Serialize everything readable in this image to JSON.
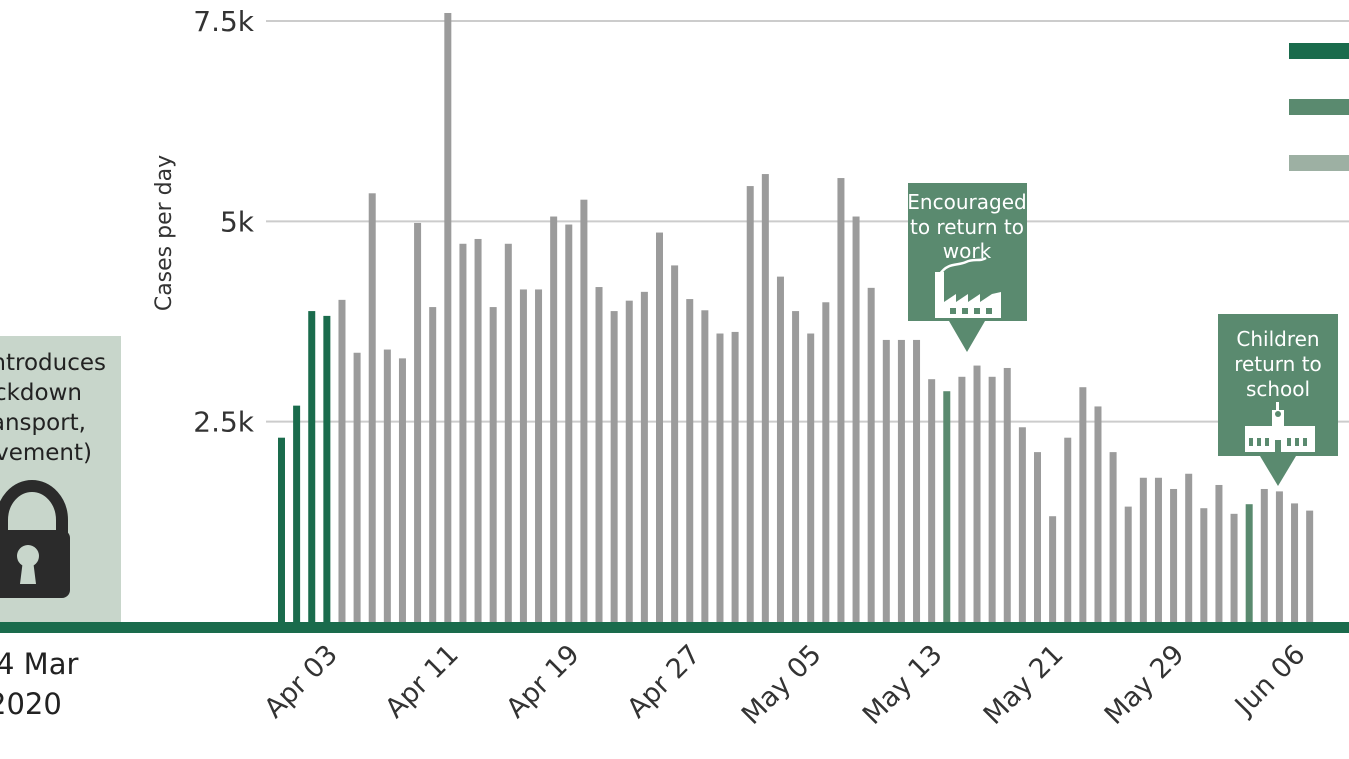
{
  "chart_data": {
    "type": "bar",
    "ylabel": "Cases per day",
    "ylim": [
      0,
      7500
    ],
    "y_ticks": [
      {
        "value": 2500,
        "label": "2.5k"
      },
      {
        "value": 5000,
        "label": "5k"
      },
      {
        "value": 7500,
        "label": "7.5k"
      }
    ],
    "grid": true,
    "x_ticks": [
      "Apr 03",
      "Apr 11",
      "Apr 19",
      "Apr 27",
      "May 05",
      "May 13",
      "May 21",
      "May 29",
      "Jun 06"
    ],
    "x_tick_start_index": 3,
    "x_tick_step": 8,
    "values": [
      2300,
      2700,
      3880,
      3820,
      4020,
      3360,
      5350,
      3400,
      3290,
      4980,
      3930,
      7600,
      4720,
      4780,
      3930,
      4720,
      4150,
      4150,
      5060,
      4960,
      5270,
      4180,
      3880,
      4010,
      4120,
      4860,
      4450,
      4030,
      3890,
      3600,
      3620,
      5440,
      5590,
      4310,
      3880,
      3600,
      3990,
      5540,
      5060,
      4170,
      3520,
      3520,
      3520,
      3030,
      2880,
      3060,
      3200,
      3060,
      3170,
      2430,
      2120,
      1320,
      2300,
      2930,
      2690,
      2120,
      1440,
      1800,
      1800,
      1660,
      1850,
      1420,
      1710,
      1350,
      1470,
      1660,
      1630,
      1480,
      1390
    ],
    "bar_colors": [
      "#1a6b4c",
      "#1a6b4c",
      "#1a6b4c",
      "#1a6b4c",
      "#9b9b9b",
      "#9b9b9b",
      "#9b9b9b",
      "#9b9b9b",
      "#9b9b9b",
      "#9b9b9b",
      "#9b9b9b",
      "#9b9b9b",
      "#9b9b9b",
      "#9b9b9b",
      "#9b9b9b",
      "#9b9b9b",
      "#9b9b9b",
      "#9b9b9b",
      "#9b9b9b",
      "#9b9b9b",
      "#9b9b9b",
      "#9b9b9b",
      "#9b9b9b",
      "#9b9b9b",
      "#9b9b9b",
      "#9b9b9b",
      "#9b9b9b",
      "#9b9b9b",
      "#9b9b9b",
      "#9b9b9b",
      "#9b9b9b",
      "#9b9b9b",
      "#9b9b9b",
      "#9b9b9b",
      "#9b9b9b",
      "#9b9b9b",
      "#9b9b9b",
      "#9b9b9b",
      "#9b9b9b",
      "#9b9b9b",
      "#9b9b9b",
      "#9b9b9b",
      "#9b9b9b",
      "#9b9b9b",
      "#5a8a6f",
      "#9b9b9b",
      "#9b9b9b",
      "#9b9b9b",
      "#9b9b9b",
      "#9b9b9b",
      "#9b9b9b",
      "#9b9b9b",
      "#9b9b9b",
      "#9b9b9b",
      "#9b9b9b",
      "#9b9b9b",
      "#9b9b9b",
      "#9b9b9b",
      "#9b9b9b",
      "#9b9b9b",
      "#9b9b9b",
      "#9b9b9b",
      "#9b9b9b",
      "#9b9b9b",
      "#5a8a6f",
      "#9b9b9b",
      "#9b9b9b",
      "#9b9b9b",
      "#9b9b9b"
    ],
    "legend_placement": "top-right",
    "legend_swatches": [
      "#1a6b4c",
      "#5a8a6f",
      "#9db0a3"
    ],
    "annotations": [
      {
        "lines": [
          "Encouraged",
          "to return to",
          "work"
        ],
        "bar_index": 44,
        "icon": "factory-icon",
        "color": "#5a8a6f"
      },
      {
        "lines": [
          "Children",
          "return to",
          "school"
        ],
        "bar_index": 64,
        "icon": "school-icon",
        "color": "#5a8a6f"
      }
    ],
    "lockdown_panel": {
      "lines": [
        "introduces",
        "ckdown",
        "ansport,",
        "ovement)"
      ],
      "icon": "lock-icon",
      "color": "#c8d6cb"
    },
    "start_date_label": [
      "4 Mar",
      "2020"
    ],
    "baseline_color": "#1a6b4c"
  }
}
